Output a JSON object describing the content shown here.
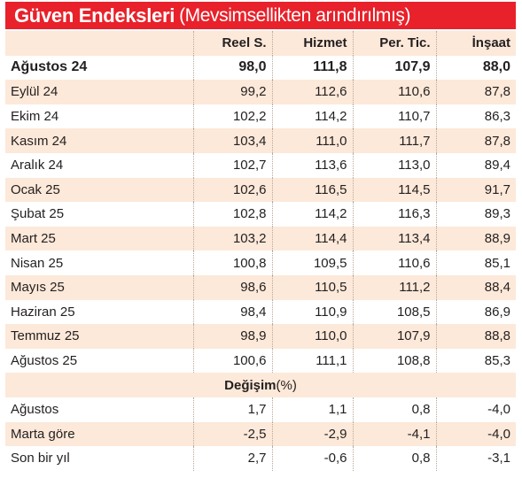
{
  "title": {
    "main": "Güven Endeksleri",
    "sub": "(Mevsimsellikten arındırılmış)"
  },
  "table": {
    "columns": [
      "",
      "Reel S.",
      "Hizmet",
      "Per. Tic.",
      "İnşaat"
    ],
    "rows": [
      {
        "label": "Ağustos 24",
        "values": [
          "98,0",
          "111,8",
          "107,9",
          "88,0"
        ]
      },
      {
        "label": "Eylül 24",
        "values": [
          "99,2",
          "112,6",
          "110,6",
          "87,8"
        ]
      },
      {
        "label": "Ekim 24",
        "values": [
          "102,2",
          "114,2",
          "110,7",
          "86,3"
        ]
      },
      {
        "label": "Kasım 24",
        "values": [
          "103,4",
          "111,0",
          "111,7",
          "87,8"
        ]
      },
      {
        "label": "Aralık 24",
        "values": [
          "102,7",
          "113,6",
          "113,0",
          "89,4"
        ]
      },
      {
        "label": "Ocak 25",
        "values": [
          "102,6",
          "116,5",
          "114,5",
          "91,7"
        ]
      },
      {
        "label": "Şubat 25",
        "values": [
          "102,8",
          "114,2",
          "116,3",
          "89,3"
        ]
      },
      {
        "label": "Mart 25",
        "values": [
          "103,2",
          "114,4",
          "113,4",
          "88,9"
        ]
      },
      {
        "label": "Nisan 25",
        "values": [
          "100,8",
          "109,5",
          "110,6",
          "85,1"
        ]
      },
      {
        "label": "Mayıs 25",
        "values": [
          "98,6",
          "110,5",
          "111,2",
          "88,4"
        ]
      },
      {
        "label": "Haziran 25",
        "values": [
          "98,4",
          "110,9",
          "108,5",
          "86,9"
        ]
      },
      {
        "label": "Temmuz 25",
        "values": [
          "98,9",
          "110,0",
          "107,9",
          "88,8"
        ]
      },
      {
        "label": "Ağustos 25",
        "values": [
          "100,6",
          "111,1",
          "108,8",
          "85,3"
        ]
      }
    ],
    "change_header": {
      "label": "Değişim",
      "unit": "(%)"
    },
    "change_rows": [
      {
        "label": "Ağustos",
        "values": [
          "1,7",
          "1,1",
          "0,8",
          "-4,0"
        ]
      },
      {
        "label": "Marta göre",
        "values": [
          "-2,5",
          "-2,9",
          "-4,1",
          "-4,0"
        ]
      },
      {
        "label": "Son bir yıl",
        "values": [
          "2,7",
          "-0,6",
          "0,8",
          "-3,1"
        ]
      }
    ]
  }
}
